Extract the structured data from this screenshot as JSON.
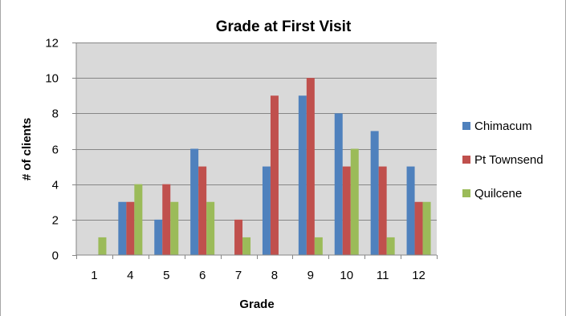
{
  "chart_data": {
    "type": "bar",
    "title": "Grade at First Visit",
    "xlabel": "Grade",
    "ylabel": "# of clients",
    "categories": [
      "1",
      "4",
      "5",
      "6",
      "7",
      "8",
      "9",
      "10",
      "11",
      "12"
    ],
    "ylim": [
      0,
      12
    ],
    "yticks": [
      "0",
      "2",
      "4",
      "6",
      "8",
      "10",
      "12"
    ],
    "grid": true,
    "legend_position": "right",
    "plot_background": "#d9d9d9",
    "series": [
      {
        "name": "Chimacum",
        "color": "#4f81bd",
        "values": [
          0,
          3,
          2,
          6,
          0,
          5,
          9,
          8,
          7,
          5
        ]
      },
      {
        "name": "Pt Townsend",
        "color": "#c0504d",
        "values": [
          0,
          3,
          4,
          5,
          2,
          9,
          10,
          5,
          5,
          3
        ]
      },
      {
        "name": "Quilcene",
        "color": "#9bbb59",
        "values": [
          1,
          4,
          3,
          3,
          1,
          0,
          1,
          6,
          1,
          3
        ]
      }
    ]
  }
}
